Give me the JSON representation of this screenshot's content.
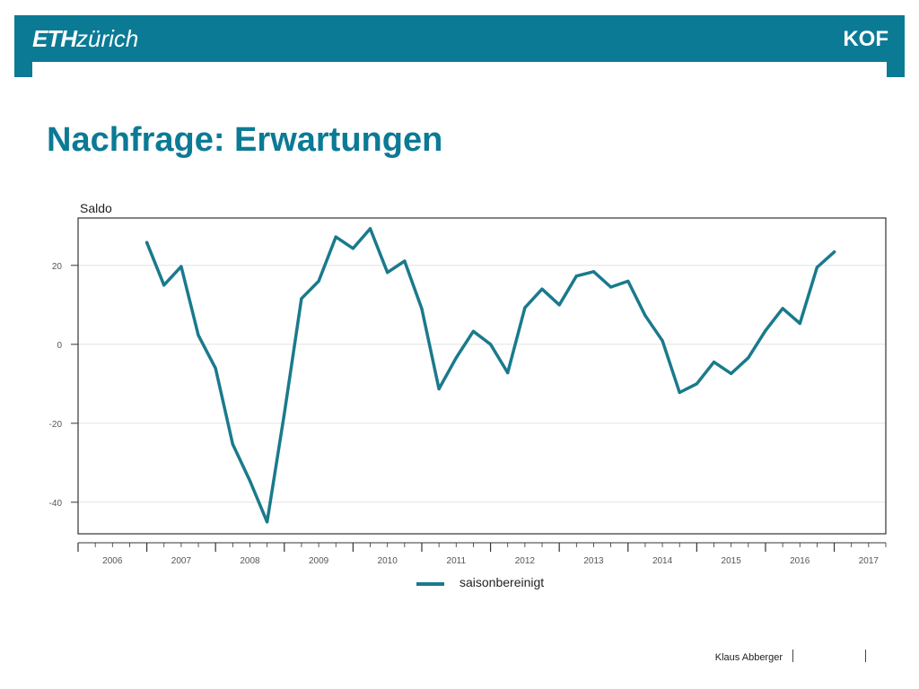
{
  "header": {
    "logo_left_bold": "ETH",
    "logo_left_light": "zürich",
    "logo_right": "KOF",
    "color": "#0b7a95"
  },
  "title": "Nachfrage: Erwartungen",
  "footer": {
    "author": "Klaus Abberger"
  },
  "chart_data": {
    "type": "line",
    "ylabel": "Saldo",
    "xlabel": "",
    "xlim": [
      2006,
      2017.75
    ],
    "ylim": [
      -48,
      32
    ],
    "yticks": [
      -40,
      -20,
      0,
      20
    ],
    "ytick_labels": [
      "-40",
      "-20",
      "0",
      "20"
    ],
    "xticks": [
      2006,
      2007,
      2008,
      2009,
      2010,
      2011,
      2012,
      2013,
      2014,
      2015,
      2016,
      2017
    ],
    "xtick_labels": [
      "2006",
      "2007",
      "2008",
      "2009",
      "2010",
      "2011",
      "2012",
      "2013",
      "2014",
      "2015",
      "2016",
      "2017"
    ],
    "grid": true,
    "legend_position": "bottom-center",
    "series": [
      {
        "name": "saisonbereinigt",
        "color": "#1a7a8c",
        "x": [
          2007.0,
          2007.25,
          2007.5,
          2007.75,
          2008.0,
          2008.25,
          2008.5,
          2008.75,
          2009.0,
          2009.25,
          2009.5,
          2009.75,
          2010.0,
          2010.25,
          2010.5,
          2010.75,
          2011.0,
          2011.25,
          2011.5,
          2011.75,
          2012.0,
          2012.25,
          2012.5,
          2012.75,
          2013.0,
          2013.25,
          2013.5,
          2013.75,
          2014.0,
          2014.25,
          2014.5,
          2014.75,
          2015.0,
          2015.25,
          2015.5,
          2015.75,
          2016.0,
          2016.25,
          2016.5,
          2016.75,
          2017.0
        ],
        "y": [
          25.8,
          15.0,
          19.7,
          2.3,
          -6.1,
          -25.3,
          -34.6,
          -45.0,
          -17.6,
          11.6,
          16.0,
          27.2,
          24.3,
          29.3,
          18.2,
          21.1,
          9.0,
          -11.3,
          -3.4,
          3.3,
          0.0,
          -7.2,
          9.3,
          14.0,
          10.0,
          17.3,
          18.4,
          14.5,
          16.0,
          7.3,
          0.9,
          -12.2,
          -10.0,
          -4.5,
          -7.4,
          -3.4,
          3.5,
          9.1,
          5.3,
          19.5,
          23.4
        ]
      }
    ]
  }
}
